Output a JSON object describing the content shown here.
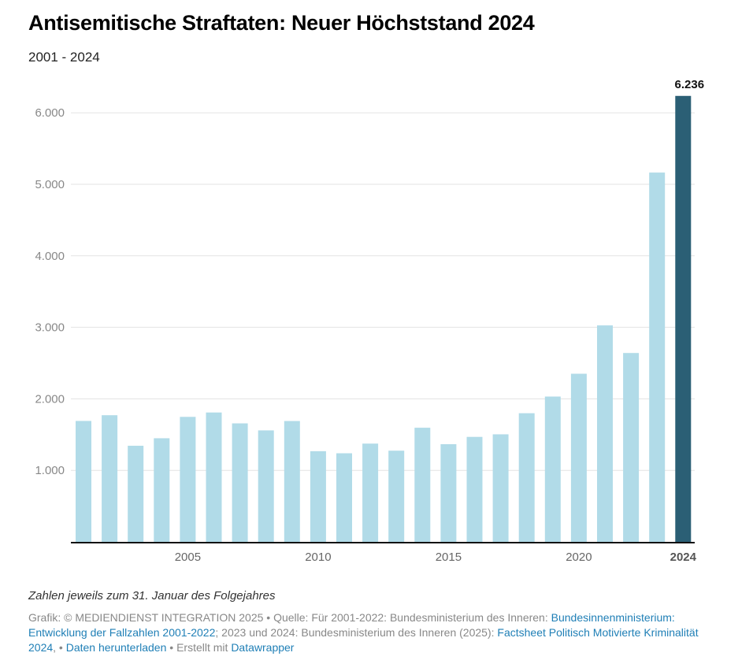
{
  "header": {
    "title": "Antisemitische Straftaten: Neuer Höchststand 2024",
    "subtitle": "2001 - 2024"
  },
  "chart_data": {
    "type": "bar",
    "title": "Antisemitische Straftaten: Neuer Höchststand 2024",
    "subtitle": "2001 - 2024",
    "xlabel": "",
    "ylabel": "",
    "categories": [
      "2001",
      "2002",
      "2003",
      "2004",
      "2005",
      "2006",
      "2007",
      "2008",
      "2009",
      "2010",
      "2011",
      "2012",
      "2013",
      "2014",
      "2015",
      "2016",
      "2017",
      "2018",
      "2019",
      "2020",
      "2021",
      "2022",
      "2023",
      "2024"
    ],
    "values": [
      1691,
      1771,
      1344,
      1449,
      1748,
      1809,
      1657,
      1559,
      1690,
      1268,
      1239,
      1374,
      1275,
      1596,
      1366,
      1468,
      1504,
      1799,
      2032,
      2351,
      3027,
      2641,
      5164,
      6236
    ],
    "ylim": [
      0,
      6236
    ],
    "yticks": [
      {
        "value": 1000,
        "label": "1.000"
      },
      {
        "value": 2000,
        "label": "2.000"
      },
      {
        "value": 3000,
        "label": "3.000"
      },
      {
        "value": 4000,
        "label": "4.000"
      },
      {
        "value": 5000,
        "label": "5.000"
      },
      {
        "value": 6000,
        "label": "6.000"
      }
    ],
    "xticks": [
      {
        "category": "2005",
        "label": "2005",
        "bold": false
      },
      {
        "category": "2010",
        "label": "2010",
        "bold": false
      },
      {
        "category": "2015",
        "label": "2015",
        "bold": false
      },
      {
        "category": "2020",
        "label": "2020",
        "bold": false
      },
      {
        "category": "2024",
        "label": "2024",
        "bold": true
      }
    ],
    "highlight": {
      "category": "2024",
      "label": "6.236"
    },
    "grid": true,
    "legend": "none",
    "colors": {
      "bar": "#b1dbe8",
      "highlight": "#2b5f75",
      "grid": "#e3e3e3",
      "axis": "#111111"
    }
  },
  "notes": {
    "caption": "Zahlen jeweils zum 31. Januar des Folgejahres"
  },
  "footer": {
    "part1": "Grafik: © MEDIENDIENST INTEGRATION 2025 • Quelle: Für 2001-2022: Bundesministerium des Inneren: ",
    "link1": "Bundesinnenministerium: Entwicklung der Fallzahlen 2001-2022",
    "part2": "; 2023 und 2024: Bundesministerium des Inneren (2025): ",
    "link2": "Factsheet Politisch Motivierte Kriminalität 2024",
    "part3": ",  • ",
    "link3": "Daten herunterladen",
    "part4": " • Erstellt mit ",
    "link4": "Datawrapper"
  }
}
